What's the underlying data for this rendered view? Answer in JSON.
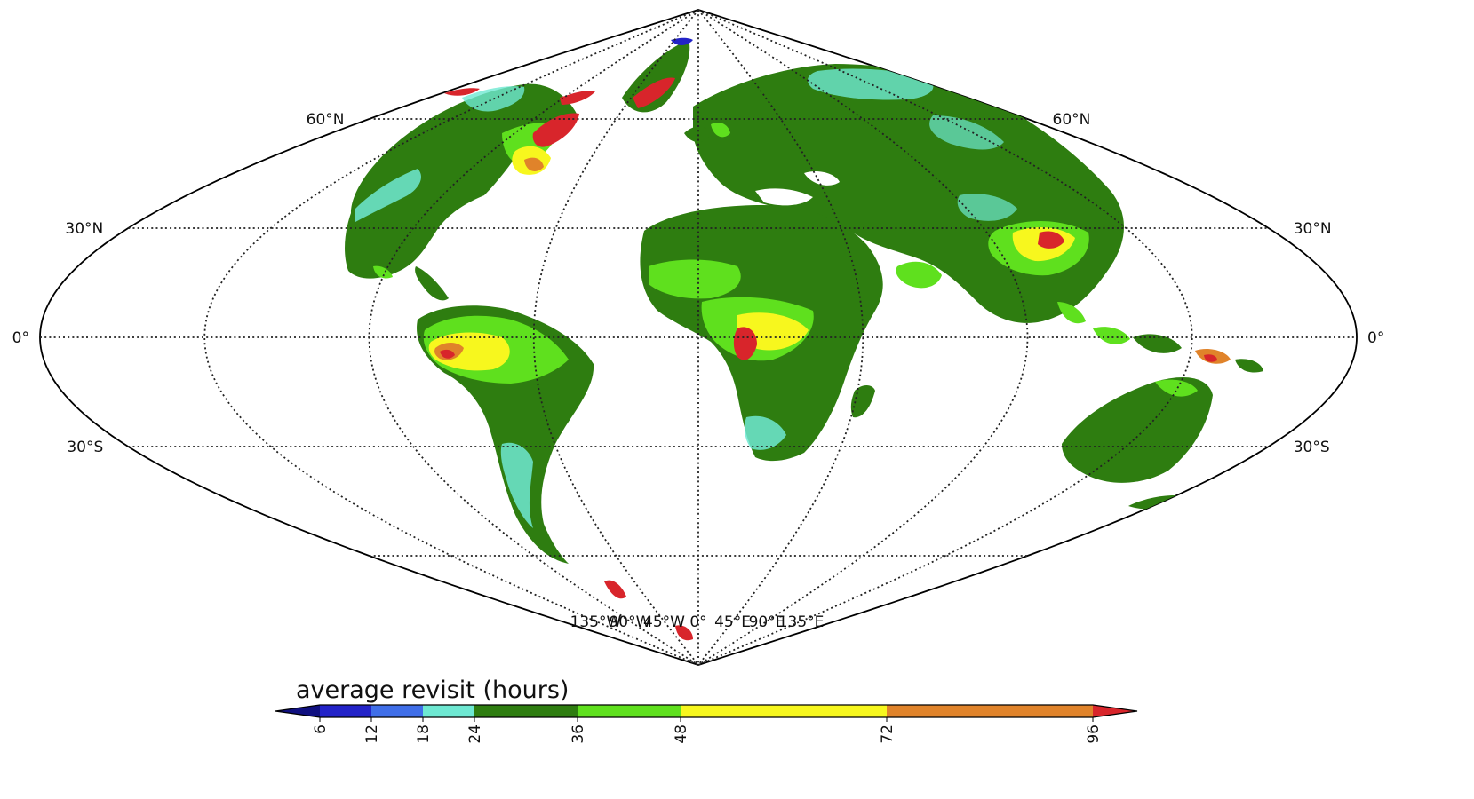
{
  "map": {
    "projection": "sinusoidal",
    "lat_labels": [
      {
        "text": "60°N",
        "lat": 60,
        "sides": [
          "left",
          "right"
        ]
      },
      {
        "text": "30°N",
        "lat": 30,
        "sides": [
          "left",
          "right"
        ]
      },
      {
        "text": "0°",
        "lat": 0,
        "sides": [
          "left",
          "right"
        ]
      },
      {
        "text": "30°S",
        "lat": -30,
        "sides": [
          "left",
          "right"
        ]
      }
    ],
    "lon_labels": [
      {
        "text": "135°W",
        "lon": -135
      },
      {
        "text": "90°W",
        "lon": -90
      },
      {
        "text": "45°W",
        "lon": -45
      },
      {
        "text": "0°",
        "lon": 0
      },
      {
        "text": "45°E",
        "lon": 45
      },
      {
        "text": "90°E",
        "lon": 90
      },
      {
        "text": "135°E",
        "lon": 135
      }
    ],
    "colors": {
      "ocean": "#ffffff",
      "dominant_land": "#2e7d10"
    }
  },
  "colorbar": {
    "title": "average revisit (hours)",
    "orientation": "horizontal",
    "extend": "both",
    "ticks": [
      "6",
      "12",
      "18",
      "24",
      "36",
      "48",
      "72",
      "96"
    ],
    "bins": [
      {
        "from": 6,
        "to": 12,
        "color": "#2323c8"
      },
      {
        "from": 12,
        "to": 18,
        "color": "#3f6ee8"
      },
      {
        "from": 18,
        "to": 24,
        "color": "#6ee8d2"
      },
      {
        "from": 24,
        "to": 36,
        "color": "#2e7d10"
      },
      {
        "from": 36,
        "to": 48,
        "color": "#5fe01e"
      },
      {
        "from": 48,
        "to": 72,
        "color": "#f7f71e"
      },
      {
        "from": 72,
        "to": 96,
        "color": "#e0832a"
      }
    ],
    "under_color": "#101080",
    "over_color": "#d8252b"
  }
}
